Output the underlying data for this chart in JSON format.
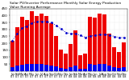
{
  "title": "Solar PV/Inverter Performance Monthly Solar Energy Production Value Running Average",
  "months": [
    "Jan",
    "Feb",
    "Mar",
    "Apr",
    "May",
    "Jun",
    "Jul",
    "Aug",
    "Sep",
    "Oct",
    "Nov",
    "Dec",
    "Jan",
    "Feb",
    "Mar",
    "Apr",
    "May",
    "Jun",
    "Jul",
    "Aug",
    "Sep",
    "Oct",
    "Nov",
    "Dec"
  ],
  "years": [
    "07",
    "07",
    "07",
    "07",
    "07",
    "07",
    "07",
    "07",
    "07",
    "07",
    "07",
    "07",
    "08",
    "08",
    "08",
    "08",
    "08",
    "08",
    "08",
    "08",
    "08",
    "08",
    "08",
    "08"
  ],
  "values": [
    220,
    315,
    390,
    370,
    430,
    395,
    415,
    395,
    345,
    250,
    155,
    125,
    195,
    295,
    115,
    125,
    390,
    385,
    415,
    405,
    270,
    170,
    135,
    205
  ],
  "small_values": [
    28,
    38,
    44,
    48,
    52,
    50,
    48,
    46,
    40,
    33,
    23,
    18,
    26,
    36,
    16,
    16,
    48,
    46,
    50,
    48,
    36,
    26,
    20,
    28
  ],
  "running_avg": [
    220,
    268,
    308,
    324,
    346,
    354,
    358,
    356,
    348,
    328,
    303,
    278,
    268,
    270,
    255,
    243,
    251,
    256,
    261,
    264,
    257,
    249,
    240,
    240
  ],
  "bar_color": "#EE0000",
  "small_bar_color": "#0000EE",
  "avg_line_color": "#0000CC",
  "background_color": "#FFFFFF",
  "grid_color": "#CCCCCC",
  "ylim": [
    0,
    450
  ],
  "yticks": [
    50,
    100,
    150,
    200,
    250,
    300,
    350,
    400,
    450
  ],
  "ylabel_fontsize": 3.0,
  "xlabel_fontsize": 2.5,
  "title_fontsize": 3.2
}
